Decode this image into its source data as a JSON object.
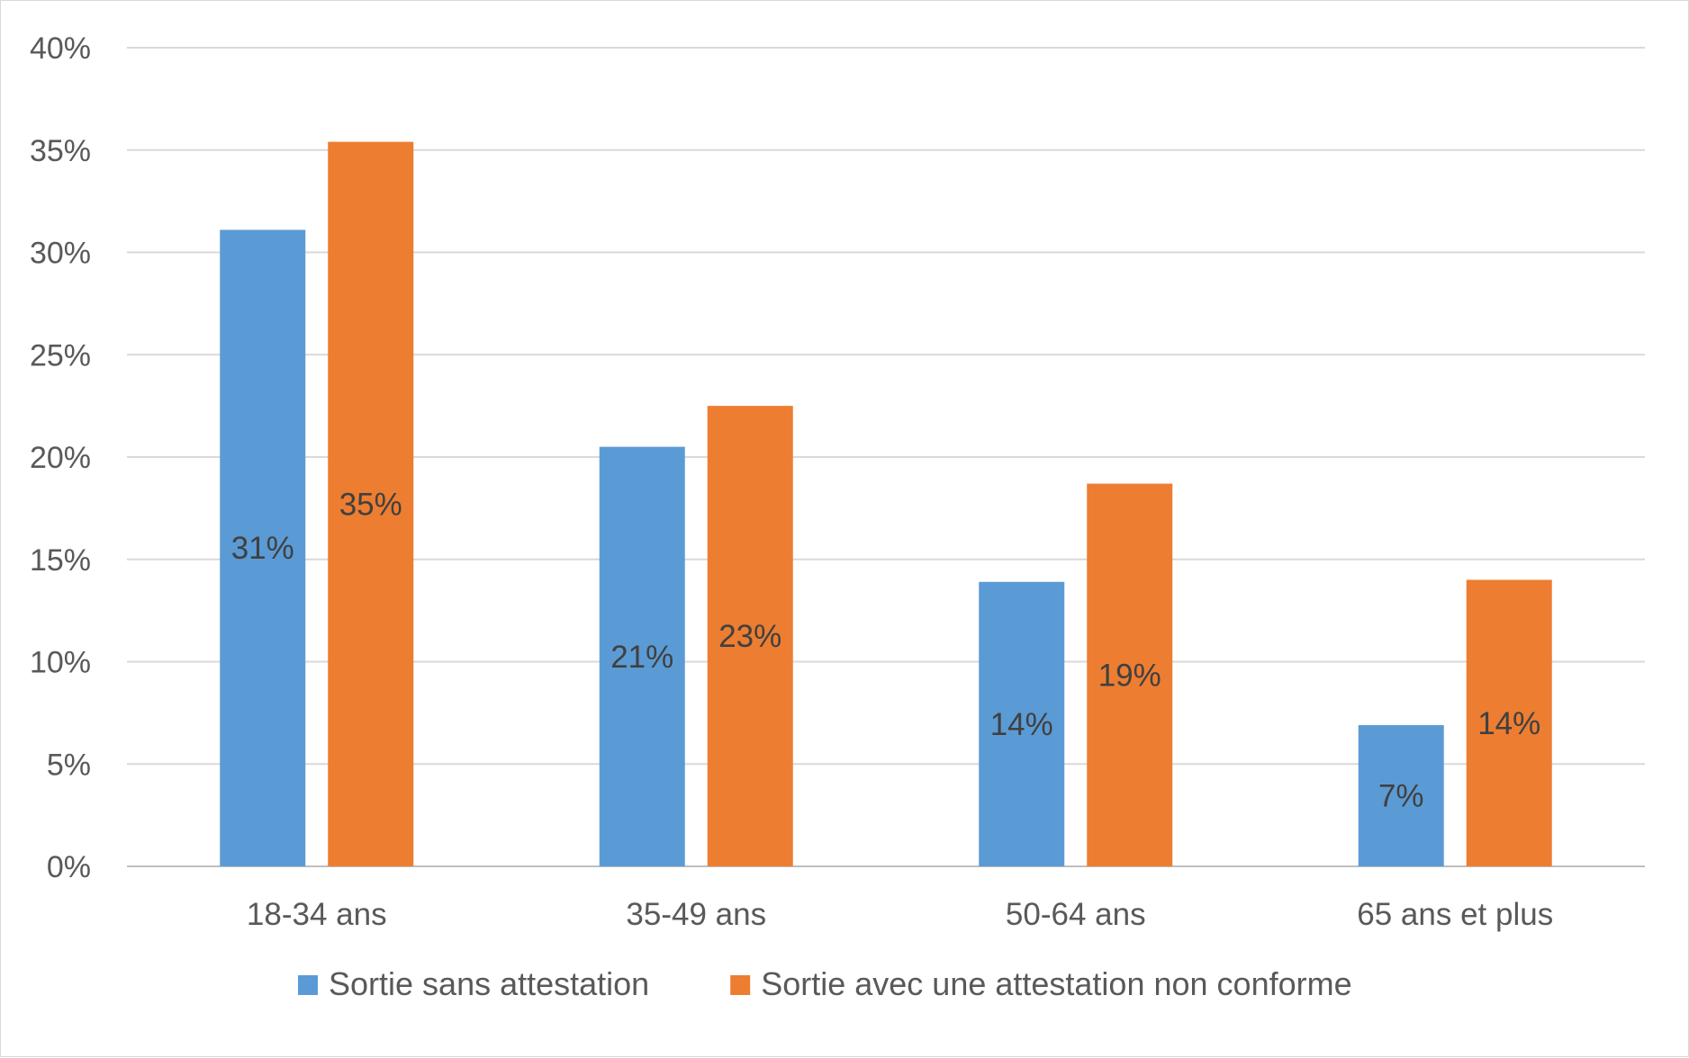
{
  "chart_data": {
    "type": "bar",
    "categories": [
      "18-34 ans",
      "35-49 ans",
      "50-64 ans",
      "65 ans et plus"
    ],
    "series": [
      {
        "name": "Sortie sans attestation",
        "color": "#5B9BD5",
        "values": [
          31.1,
          20.5,
          13.9,
          6.9
        ],
        "labels": [
          "31%",
          "21%",
          "14%",
          "7%"
        ]
      },
      {
        "name": "Sortie avec une attestation non conforme",
        "color": "#ED7D31",
        "values": [
          35.4,
          22.5,
          18.7,
          14.0
        ],
        "labels": [
          "35%",
          "23%",
          "19%",
          "14%"
        ]
      }
    ],
    "yticks": [
      0,
      5,
      10,
      15,
      20,
      25,
      30,
      35,
      40
    ],
    "ytick_labels": [
      "0%",
      "5%",
      "10%",
      "15%",
      "20%",
      "25%",
      "30%",
      "35%",
      "40%"
    ],
    "ylim": [
      0,
      40
    ],
    "title": "",
    "xlabel": "",
    "ylabel": "",
    "grid": true,
    "legend_position": "bottom"
  }
}
